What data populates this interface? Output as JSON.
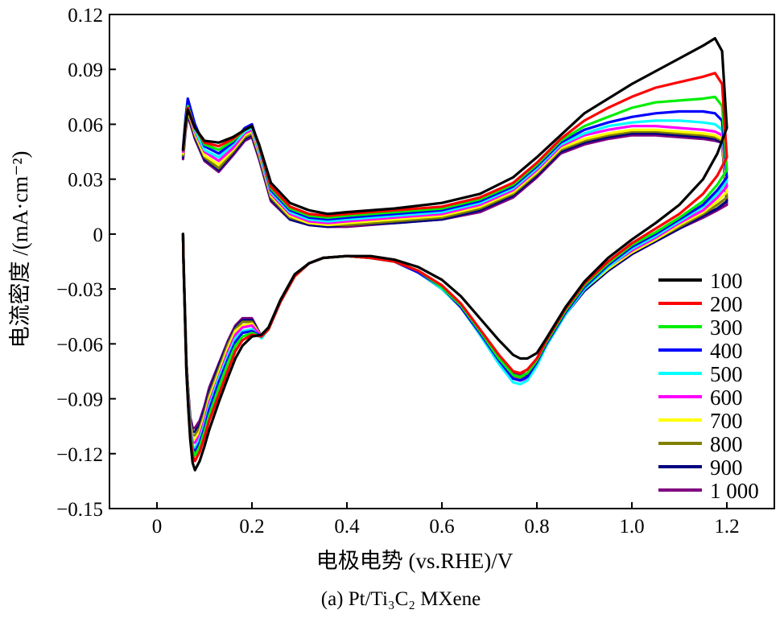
{
  "chart_data": {
    "type": "line",
    "caption": "(a) Pt/Ti₃C₂ MXene",
    "xlabel": "电极电势 (vs.RHE)/V",
    "ylabel": "电流密度 /(mA·cm⁻²)",
    "xlim": [
      -0.1,
      1.3
    ],
    "ylim": [
      -0.15,
      0.12
    ],
    "x_ticks": [
      "0",
      "0.2",
      "0.4",
      "0.6",
      "0.8",
      "1.0",
      "1.2"
    ],
    "x_tick_values": [
      0,
      0.2,
      0.4,
      0.6,
      0.8,
      1.0,
      1.2
    ],
    "y_ticks": [
      "0.12",
      "0.09",
      "0.06",
      "0.03",
      "0",
      "−0.03",
      "−0.06",
      "−0.09",
      "−0.12",
      "−0.15"
    ],
    "y_tick_values": [
      0.12,
      0.09,
      0.06,
      0.03,
      0,
      -0.03,
      -0.06,
      -0.09,
      -0.12,
      -0.15
    ],
    "grid": false,
    "legend_position": "bottom-right",
    "anodic_x": [
      0.055,
      0.06,
      0.065,
      0.08,
      0.1,
      0.13,
      0.16,
      0.185,
      0.2,
      0.215,
      0.24,
      0.28,
      0.32,
      0.36,
      0.4,
      0.5,
      0.6,
      0.68,
      0.75,
      0.8,
      0.85,
      0.9,
      0.95,
      1.0,
      1.05,
      1.1,
      1.15,
      1.175,
      1.19
    ],
    "cathodic_x": [
      1.2,
      1.18,
      1.15,
      1.1,
      1.05,
      1.0,
      0.95,
      0.9,
      0.86,
      0.82,
      0.8,
      0.78,
      0.765,
      0.75,
      0.72,
      0.68,
      0.64,
      0.6,
      0.55,
      0.5,
      0.45,
      0.4,
      0.35,
      0.32,
      0.29,
      0.26,
      0.235,
      0.22,
      0.2,
      0.18,
      0.165,
      0.15,
      0.13,
      0.11,
      0.1,
      0.09,
      0.08,
      0.075,
      0.07,
      0.066,
      0.062,
      0.06,
      0.058,
      0.056,
      0.055
    ],
    "series": [
      {
        "name": "100",
        "color": "#000000",
        "anodic_y": [
          0.046,
          0.06,
          0.068,
          0.058,
          0.051,
          0.05,
          0.053,
          0.057,
          0.059,
          0.049,
          0.028,
          0.017,
          0.013,
          0.011,
          0.012,
          0.014,
          0.017,
          0.022,
          0.031,
          0.042,
          0.054,
          0.066,
          0.074,
          0.082,
          0.089,
          0.096,
          0.103,
          0.107,
          0.1
        ],
        "cathodic_y": [
          0.058,
          0.044,
          0.03,
          0.016,
          0.006,
          -0.003,
          -0.013,
          -0.026,
          -0.04,
          -0.057,
          -0.065,
          -0.068,
          -0.068,
          -0.066,
          -0.058,
          -0.046,
          -0.034,
          -0.025,
          -0.018,
          -0.014,
          -0.012,
          -0.012,
          -0.013,
          -0.016,
          -0.022,
          -0.036,
          -0.051,
          -0.055,
          -0.056,
          -0.061,
          -0.068,
          -0.078,
          -0.092,
          -0.107,
          -0.116,
          -0.124,
          -0.129,
          -0.125,
          -0.112,
          -0.095,
          -0.075,
          -0.055,
          -0.035,
          -0.015,
          0.0
        ]
      },
      {
        "name": "200",
        "color": "#ff0000",
        "anodic_y": [
          0.046,
          0.06,
          0.069,
          0.058,
          0.05,
          0.048,
          0.052,
          0.057,
          0.059,
          0.048,
          0.026,
          0.015,
          0.011,
          0.01,
          0.011,
          0.013,
          0.015,
          0.02,
          0.028,
          0.039,
          0.052,
          0.062,
          0.069,
          0.075,
          0.08,
          0.083,
          0.086,
          0.088,
          0.082
        ],
        "cathodic_y": [
          0.042,
          0.032,
          0.022,
          0.011,
          0.003,
          -0.005,
          -0.015,
          -0.027,
          -0.041,
          -0.058,
          -0.068,
          -0.074,
          -0.076,
          -0.075,
          -0.066,
          -0.052,
          -0.038,
          -0.028,
          -0.02,
          -0.015,
          -0.013,
          -0.012,
          -0.013,
          -0.016,
          -0.023,
          -0.037,
          -0.052,
          -0.056,
          -0.055,
          -0.058,
          -0.064,
          -0.074,
          -0.088,
          -0.102,
          -0.111,
          -0.119,
          -0.124,
          -0.121,
          -0.11,
          -0.094,
          -0.075,
          -0.055,
          -0.035,
          -0.015,
          0.0
        ]
      },
      {
        "name": "300",
        "color": "#00ee00",
        "anodic_y": [
          0.046,
          0.061,
          0.07,
          0.058,
          0.049,
          0.046,
          0.051,
          0.057,
          0.059,
          0.048,
          0.025,
          0.014,
          0.01,
          0.009,
          0.01,
          0.012,
          0.014,
          0.019,
          0.027,
          0.038,
          0.051,
          0.059,
          0.064,
          0.069,
          0.072,
          0.073,
          0.074,
          0.075,
          0.07
        ],
        "cathodic_y": [
          0.035,
          0.027,
          0.018,
          0.009,
          0.001,
          -0.006,
          -0.016,
          -0.028,
          -0.042,
          -0.059,
          -0.069,
          -0.076,
          -0.078,
          -0.077,
          -0.068,
          -0.053,
          -0.039,
          -0.029,
          -0.02,
          -0.015,
          -0.013,
          -0.012,
          -0.013,
          -0.016,
          -0.023,
          -0.037,
          -0.052,
          -0.056,
          -0.054,
          -0.056,
          -0.061,
          -0.07,
          -0.084,
          -0.099,
          -0.108,
          -0.116,
          -0.121,
          -0.118,
          -0.108,
          -0.093,
          -0.074,
          -0.054,
          -0.034,
          -0.015,
          0.0
        ]
      },
      {
        "name": "400",
        "color": "#0000ff",
        "anodic_y": [
          0.047,
          0.063,
          0.074,
          0.06,
          0.048,
          0.044,
          0.05,
          0.058,
          0.06,
          0.048,
          0.024,
          0.013,
          0.009,
          0.008,
          0.009,
          0.011,
          0.013,
          0.018,
          0.026,
          0.037,
          0.05,
          0.057,
          0.061,
          0.064,
          0.066,
          0.067,
          0.067,
          0.066,
          0.062
        ],
        "cathodic_y": [
          0.031,
          0.024,
          0.016,
          0.008,
          0.0,
          -0.007,
          -0.017,
          -0.029,
          -0.043,
          -0.06,
          -0.07,
          -0.078,
          -0.08,
          -0.079,
          -0.069,
          -0.054,
          -0.04,
          -0.029,
          -0.021,
          -0.015,
          -0.013,
          -0.012,
          -0.013,
          -0.016,
          -0.023,
          -0.037,
          -0.052,
          -0.056,
          -0.053,
          -0.054,
          -0.059,
          -0.068,
          -0.081,
          -0.096,
          -0.106,
          -0.114,
          -0.119,
          -0.117,
          -0.107,
          -0.092,
          -0.074,
          -0.054,
          -0.034,
          -0.015,
          0.0
        ]
      },
      {
        "name": "500",
        "color": "#00ffff",
        "anodic_y": [
          0.046,
          0.061,
          0.071,
          0.057,
          0.046,
          0.042,
          0.049,
          0.056,
          0.058,
          0.046,
          0.023,
          0.012,
          0.008,
          0.007,
          0.008,
          0.01,
          0.012,
          0.017,
          0.025,
          0.036,
          0.049,
          0.055,
          0.059,
          0.061,
          0.062,
          0.062,
          0.061,
          0.06,
          0.057
        ],
        "cathodic_y": [
          0.029,
          0.022,
          0.015,
          0.007,
          -0.001,
          -0.008,
          -0.018,
          -0.03,
          -0.044,
          -0.061,
          -0.072,
          -0.08,
          -0.082,
          -0.081,
          -0.071,
          -0.055,
          -0.04,
          -0.03,
          -0.021,
          -0.015,
          -0.013,
          -0.012,
          -0.013,
          -0.016,
          -0.023,
          -0.037,
          -0.052,
          -0.057,
          -0.052,
          -0.053,
          -0.057,
          -0.066,
          -0.079,
          -0.094,
          -0.104,
          -0.112,
          -0.117,
          -0.116,
          -0.106,
          -0.091,
          -0.073,
          -0.053,
          -0.034,
          -0.015,
          0.0
        ]
      },
      {
        "name": "600",
        "color": "#ff00ff",
        "anodic_y": [
          0.045,
          0.06,
          0.069,
          0.056,
          0.045,
          0.04,
          0.047,
          0.055,
          0.057,
          0.045,
          0.022,
          0.011,
          0.007,
          0.006,
          0.007,
          0.009,
          0.011,
          0.016,
          0.024,
          0.035,
          0.048,
          0.054,
          0.057,
          0.059,
          0.059,
          0.058,
          0.057,
          0.056,
          0.054
        ],
        "cathodic_y": [
          0.026,
          0.02,
          0.013,
          0.006,
          -0.002,
          -0.009,
          -0.018,
          -0.03,
          -0.044,
          -0.061,
          -0.071,
          -0.079,
          -0.08,
          -0.079,
          -0.07,
          -0.055,
          -0.04,
          -0.03,
          -0.021,
          -0.015,
          -0.013,
          -0.012,
          -0.013,
          -0.016,
          -0.023,
          -0.037,
          -0.052,
          -0.056,
          -0.05,
          -0.051,
          -0.055,
          -0.064,
          -0.078,
          -0.092,
          -0.102,
          -0.11,
          -0.114,
          -0.114,
          -0.105,
          -0.09,
          -0.072,
          -0.053,
          -0.034,
          -0.015,
          0.0
        ]
      },
      {
        "name": "700",
        "color": "#ffff00",
        "anodic_y": [
          0.044,
          0.059,
          0.068,
          0.055,
          0.043,
          0.038,
          0.046,
          0.054,
          0.056,
          0.044,
          0.021,
          0.01,
          0.006,
          0.005,
          0.006,
          0.008,
          0.01,
          0.015,
          0.023,
          0.034,
          0.047,
          0.052,
          0.055,
          0.057,
          0.057,
          0.056,
          0.055,
          0.054,
          0.052
        ],
        "cathodic_y": [
          0.023,
          0.018,
          0.012,
          0.005,
          -0.003,
          -0.01,
          -0.019,
          -0.03,
          -0.044,
          -0.061,
          -0.071,
          -0.079,
          -0.08,
          -0.079,
          -0.07,
          -0.055,
          -0.04,
          -0.03,
          -0.021,
          -0.015,
          -0.013,
          -0.012,
          -0.013,
          -0.016,
          -0.023,
          -0.037,
          -0.052,
          -0.056,
          -0.049,
          -0.05,
          -0.053,
          -0.062,
          -0.076,
          -0.09,
          -0.1,
          -0.108,
          -0.112,
          -0.112,
          -0.104,
          -0.089,
          -0.071,
          -0.052,
          -0.033,
          -0.015,
          0.0
        ]
      },
      {
        "name": "800",
        "color": "#808000",
        "anodic_y": [
          0.043,
          0.058,
          0.067,
          0.054,
          0.042,
          0.036,
          0.045,
          0.053,
          0.055,
          0.043,
          0.02,
          0.009,
          0.006,
          0.005,
          0.005,
          0.007,
          0.009,
          0.014,
          0.022,
          0.033,
          0.046,
          0.051,
          0.054,
          0.056,
          0.056,
          0.055,
          0.054,
          0.053,
          0.051
        ],
        "cathodic_y": [
          0.02,
          0.016,
          0.011,
          0.004,
          -0.003,
          -0.01,
          -0.019,
          -0.03,
          -0.044,
          -0.061,
          -0.07,
          -0.078,
          -0.079,
          -0.078,
          -0.069,
          -0.054,
          -0.04,
          -0.03,
          -0.021,
          -0.015,
          -0.013,
          -0.012,
          -0.013,
          -0.016,
          -0.023,
          -0.037,
          -0.052,
          -0.056,
          -0.048,
          -0.048,
          -0.052,
          -0.06,
          -0.074,
          -0.088,
          -0.098,
          -0.106,
          -0.11,
          -0.11,
          -0.103,
          -0.088,
          -0.071,
          -0.052,
          -0.033,
          -0.015,
          0.0
        ]
      },
      {
        "name": "900",
        "color": "#000080",
        "anodic_y": [
          0.042,
          0.057,
          0.066,
          0.053,
          0.041,
          0.035,
          0.044,
          0.052,
          0.054,
          0.042,
          0.019,
          0.008,
          0.005,
          0.004,
          0.005,
          0.006,
          0.008,
          0.013,
          0.021,
          0.032,
          0.045,
          0.05,
          0.053,
          0.055,
          0.055,
          0.054,
          0.053,
          0.052,
          0.05
        ],
        "cathodic_y": [
          0.018,
          0.014,
          0.01,
          0.003,
          -0.004,
          -0.011,
          -0.02,
          -0.031,
          -0.044,
          -0.06,
          -0.07,
          -0.077,
          -0.078,
          -0.077,
          -0.068,
          -0.054,
          -0.04,
          -0.03,
          -0.021,
          -0.015,
          -0.013,
          -0.012,
          -0.013,
          -0.016,
          -0.023,
          -0.037,
          -0.052,
          -0.056,
          -0.047,
          -0.047,
          -0.051,
          -0.059,
          -0.072,
          -0.086,
          -0.096,
          -0.104,
          -0.108,
          -0.108,
          -0.101,
          -0.087,
          -0.07,
          -0.051,
          -0.033,
          -0.015,
          0.0
        ]
      },
      {
        "name": "1 000",
        "color": "#800080",
        "anodic_y": [
          0.041,
          0.056,
          0.065,
          0.052,
          0.04,
          0.034,
          0.043,
          0.051,
          0.053,
          0.041,
          0.018,
          0.008,
          0.005,
          0.004,
          0.004,
          0.006,
          0.008,
          0.012,
          0.02,
          0.031,
          0.044,
          0.049,
          0.052,
          0.054,
          0.054,
          0.053,
          0.052,
          0.051,
          0.05
        ],
        "cathodic_y": [
          0.016,
          0.013,
          0.009,
          0.003,
          -0.004,
          -0.011,
          -0.02,
          -0.031,
          -0.044,
          -0.06,
          -0.069,
          -0.076,
          -0.077,
          -0.076,
          -0.067,
          -0.053,
          -0.04,
          -0.03,
          -0.021,
          -0.015,
          -0.013,
          -0.012,
          -0.013,
          -0.016,
          -0.023,
          -0.037,
          -0.052,
          -0.056,
          -0.046,
          -0.046,
          -0.05,
          -0.058,
          -0.071,
          -0.084,
          -0.094,
          -0.102,
          -0.106,
          -0.106,
          -0.1,
          -0.086,
          -0.069,
          -0.051,
          -0.033,
          -0.015,
          0.0
        ]
      }
    ]
  }
}
